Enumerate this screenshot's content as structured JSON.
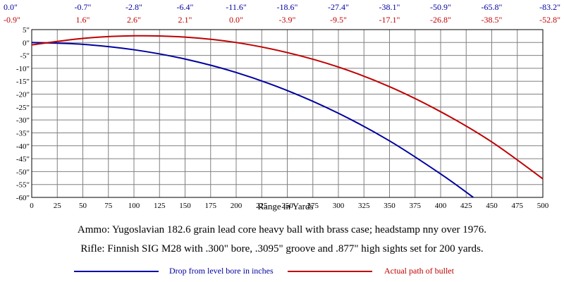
{
  "chart_data": {
    "type": "line",
    "xlabel": "Range in Yards",
    "ylabel": "",
    "title": "",
    "xlim": [
      0,
      500
    ],
    "ylim": [
      -60,
      5
    ],
    "x_ticks": [
      "0",
      "25",
      "50",
      "75",
      "100",
      "125",
      "150",
      "175",
      "200",
      "225",
      "250",
      "275",
      "300",
      "325",
      "350",
      "375",
      "400",
      "425",
      "450",
      "475",
      "500"
    ],
    "y_ticks": [
      "5\"",
      "0\"",
      "-5\"",
      "-10\"",
      "-15\"",
      "-20\"",
      "-25\"",
      "-30\"",
      "-35\"",
      "-40\"",
      "-45\"",
      "-50\"",
      "-55\"",
      "-60\""
    ],
    "grid": true,
    "top_row_drop": [
      "0.0\"",
      "-0.7\"",
      "-2.8\"",
      "-6.4\"",
      "-11.6\"",
      "-18.6\"",
      "-27.4\"",
      "-38.1\"",
      "-50.9\"",
      "-65.8\"",
      "-83.2\""
    ],
    "top_row_path": [
      "-0.9\"",
      "1.6\"",
      "2.6\"",
      "2.1\"",
      "0.0\"",
      "-3.9\"",
      "-9.5\"",
      "-17.1\"",
      "-26.8\"",
      "-38.5\"",
      "-52.8\""
    ],
    "series": [
      {
        "name": "Drop from level bore in inches",
        "color": "#0000a0",
        "x": [
          0,
          50,
          100,
          150,
          200,
          250,
          300,
          350,
          400,
          432
        ],
        "y": [
          0.0,
          -0.7,
          -2.8,
          -6.4,
          -11.6,
          -18.6,
          -27.4,
          -38.1,
          -50.9,
          -60.0
        ]
      },
      {
        "name": "Actual path of bullet",
        "color": "#c00000",
        "x": [
          0,
          50,
          100,
          150,
          200,
          250,
          300,
          350,
          400,
          450,
          500
        ],
        "y": [
          -0.9,
          1.6,
          2.6,
          2.1,
          0.0,
          -3.9,
          -9.5,
          -17.1,
          -26.8,
          -38.5,
          -52.8
        ]
      }
    ]
  },
  "captions": {
    "ammo": "Ammo:  Yugoslavian 182.6 grain lead core heavy ball with brass case; headstamp nny over 1976.",
    "rifle": "Rifle:  Finnish SIG M28 with .300\" bore, .3095\" groove and .877\" high sights set for 200 yards."
  },
  "legend": {
    "drop_label": "Drop from level bore in inches",
    "path_label": "Actual path of bullet"
  }
}
